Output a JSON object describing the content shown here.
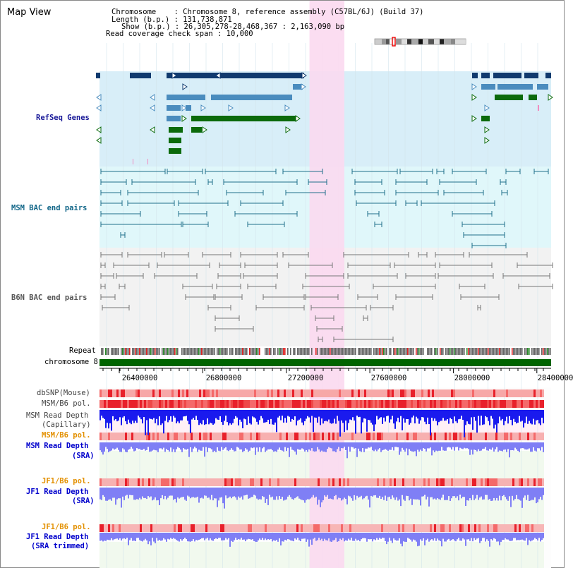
{
  "title": "Map View",
  "header": {
    "chromosome_label": "Chromosome    : Chromosome 8, reference assembly (C57BL/6J) (Build 37)",
    "length_label": "Length (b.p.) : 131,738,871",
    "show_label": "Show (b.p.) : 26,305,278-28,468,367 : 2,163,090 bp",
    "coverage_label": "Read coverage check span : 10,000"
  },
  "tracks": {
    "refseq": "RefSeq Genes",
    "msm_bac": "MSM BAC end pairs",
    "b6n_bac": "B6N BAC end pairs",
    "repeat": "Repeat",
    "chromosome": "chromosome 8",
    "dbsnp": "dbSNP(Mouse)",
    "msm_b6_pol_1": "MSM/B6 pol.",
    "msm_depth_cap_1": "MSM Read Depth",
    "msm_depth_cap_2": "(Capillary)",
    "msm_b6_pol_2": "MSM/B6 pol.",
    "msm_depth_sra_1": "MSM Read Depth",
    "msm_depth_sra_2": "(SRA)",
    "jf1_b6_pol_1": "JF1/B6 pol.",
    "jf1_depth_sra_1": "JF1 Read Depth",
    "jf1_depth_sra_2": "(SRA)",
    "jf1_b6_pol_2": "JF1/B6 pol.",
    "jf1_depth_trim_1": "JF1 Read Depth",
    "jf1_depth_trim_2": "(SRA trimmed)"
  },
  "axis": {
    "ticks": [
      "26400000",
      "26800000",
      "27200000",
      "27600000",
      "28000000",
      "28400000"
    ],
    "tick_values": [
      26400000,
      26800000,
      27200000,
      27600000,
      28000000,
      28400000
    ],
    "range": [
      26305278,
      28468367
    ]
  },
  "highlight": {
    "start": 27311000,
    "end": 27478000
  },
  "colors": {
    "refseq_navy": "#103a6e",
    "refseq_steel": "#4a8cbe",
    "refseq_green": "#0b6a0b",
    "msm_bac": "#1f6f8b",
    "b6n_bac": "#777777",
    "chromosome": "#006400",
    "highlight": "#fbd9f0",
    "depth_blue": "#1a1aee",
    "depth_sra": "#7f7ff5"
  }
}
